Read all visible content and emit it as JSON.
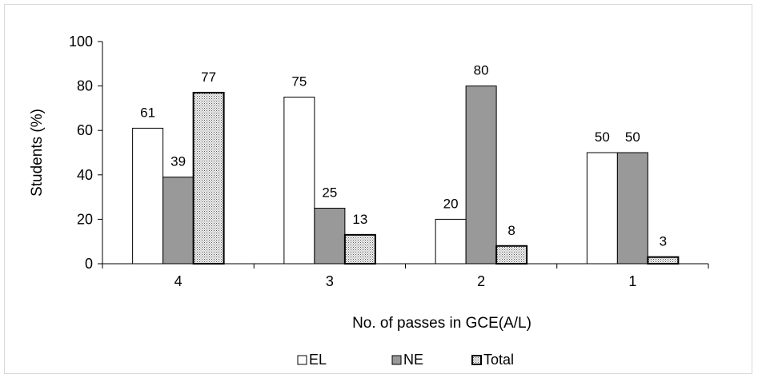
{
  "chart_data": {
    "type": "bar",
    "categories": [
      "4",
      "3",
      "2",
      "1"
    ],
    "series": [
      {
        "name": "EL",
        "values": [
          61,
          75,
          20,
          50
        ],
        "color": "#ffffff",
        "pattern": "none"
      },
      {
        "name": "NE",
        "values": [
          39,
          25,
          80,
          50
        ],
        "color": "#999999",
        "pattern": "none"
      },
      {
        "name": "Total",
        "values": [
          77,
          13,
          8,
          3
        ],
        "color": "#e0e0e0",
        "pattern": "dots"
      }
    ],
    "data_labels": [
      [
        "61",
        "75",
        "20",
        "50"
      ],
      [
        "39",
        "25",
        "80",
        "50"
      ],
      [
        "77",
        "13",
        "8",
        "3"
      ]
    ],
    "xlabel": "No. of passes in GCE(A/L)",
    "ylabel": "Students (%)",
    "ylim": [
      0,
      100
    ],
    "yticks": [
      "0",
      "20",
      "40",
      "60",
      "80",
      "100"
    ],
    "grid": false,
    "legend_position": "bottom"
  }
}
